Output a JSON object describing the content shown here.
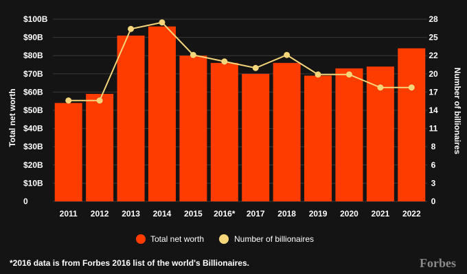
{
  "chart_data": {
    "type": "bar",
    "categories": [
      "2011",
      "2012",
      "2013",
      "2014",
      "2015",
      "2016*",
      "2017",
      "2018",
      "2019",
      "2020",
      "2021",
      "2022"
    ],
    "series": [
      {
        "name": "Total net worth",
        "type": "bar",
        "axis": "left",
        "values": [
          54,
          59,
          91,
          96,
          80,
          76,
          70,
          76,
          69,
          73,
          74,
          84
        ]
      },
      {
        "name": "Number of billionaires",
        "type": "line",
        "axis": "right",
        "values": [
          15.5,
          15.5,
          26.5,
          27.5,
          22.5,
          21.5,
          20.5,
          22.5,
          19.5,
          19.5,
          17.5,
          17.5
        ]
      }
    ],
    "y_left": {
      "label": "Total net worth",
      "range": [
        0,
        100
      ],
      "ticks": [
        0,
        10,
        20,
        30,
        40,
        50,
        60,
        70,
        80,
        90,
        100
      ],
      "tick_labels": [
        "0",
        "$10B",
        "$20B",
        "$30B",
        "$40B",
        "$50B",
        "$60B",
        "$70B",
        "$80B",
        "$90B",
        "$100B"
      ]
    },
    "y_right": {
      "label": "Number of billionaires",
      "range": [
        0,
        28
      ],
      "ticks": [
        0,
        3,
        6,
        8,
        11,
        14,
        17,
        20,
        22,
        25,
        28
      ],
      "tick_labels": [
        "0",
        "3",
        "6",
        "8",
        "11",
        "14",
        "17",
        "20",
        "22",
        "25",
        "28"
      ]
    },
    "grid": true,
    "legend": "bottom-center",
    "colors": {
      "bar": "#ff3c00",
      "line": "#f5d67a",
      "grid": "#3a3a3a",
      "background": "#141414"
    }
  },
  "footnote": "*2016 data is from Forbes 2016 list of the world's Billionaires.",
  "brand": "Forbes"
}
